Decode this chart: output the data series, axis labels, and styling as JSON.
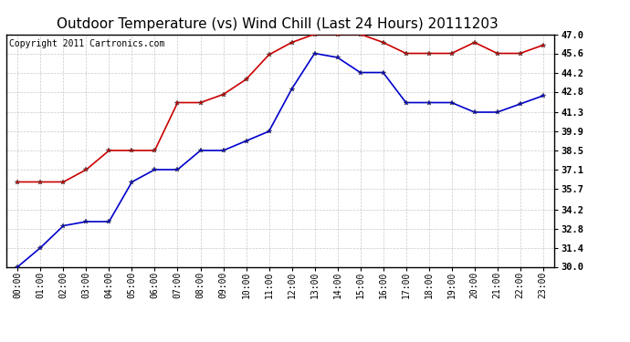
{
  "title": "Outdoor Temperature (vs) Wind Chill (Last 24 Hours) 20111203",
  "copyright": "Copyright 2011 Cartronics.com",
  "x_labels": [
    "00:00",
    "01:00",
    "02:00",
    "03:00",
    "04:00",
    "05:00",
    "06:00",
    "07:00",
    "08:00",
    "09:00",
    "10:00",
    "11:00",
    "12:00",
    "13:00",
    "14:00",
    "15:00",
    "16:00",
    "17:00",
    "18:00",
    "19:00",
    "20:00",
    "21:00",
    "22:00",
    "23:00"
  ],
  "temp_data": [
    30.0,
    31.4,
    33.0,
    33.3,
    33.3,
    36.2,
    37.1,
    37.1,
    38.5,
    38.5,
    39.2,
    39.9,
    43.0,
    45.6,
    45.3,
    44.2,
    44.2,
    42.0,
    42.0,
    42.0,
    41.3,
    41.3,
    41.9,
    42.5
  ],
  "windchill_data": [
    36.2,
    36.2,
    36.2,
    37.1,
    38.5,
    38.5,
    38.5,
    42.0,
    42.0,
    42.6,
    43.7,
    45.5,
    46.4,
    47.0,
    47.0,
    47.0,
    46.4,
    45.6,
    45.6,
    45.6,
    46.4,
    45.6,
    45.6,
    46.2
  ],
  "temp_color": "#0000cc",
  "windchill_color": "#cc0000",
  "ylim_min": 30.0,
  "ylim_max": 47.0,
  "yticks": [
    30.0,
    31.4,
    32.8,
    34.2,
    35.7,
    37.1,
    38.5,
    39.9,
    41.3,
    42.8,
    44.2,
    45.6,
    47.0
  ],
  "background_color": "#ffffff",
  "plot_bg_color": "#ffffff",
  "grid_color": "#bbbbbb",
  "title_fontsize": 11,
  "copyright_fontsize": 7,
  "tick_fontsize": 7,
  "ytick_fontsize": 7.5
}
